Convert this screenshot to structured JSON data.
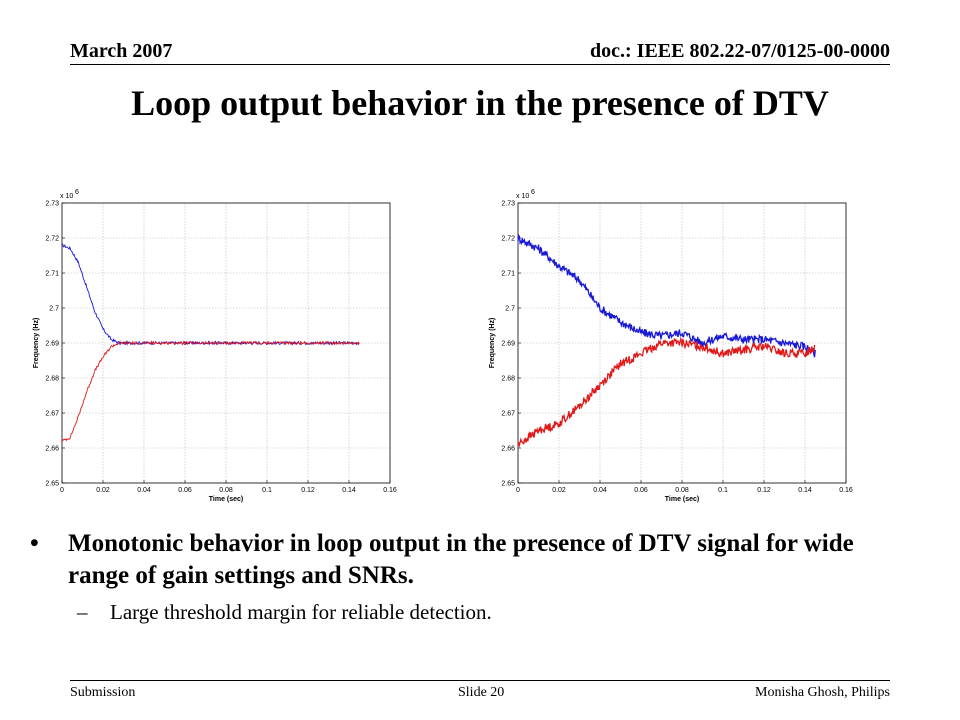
{
  "header": {
    "date": "March 2007",
    "doc": "doc.: IEEE 802.22-07/0125-00-0000"
  },
  "title": "Loop output behavior in the presence of DTV",
  "chart_data": [
    {
      "type": "line",
      "xlabel": "Time (sec)",
      "ylabel": "Frequency (Hz)",
      "exponent_label": "x 10",
      "exponent_power": "6",
      "xlim": [
        0,
        0.16
      ],
      "ylim": [
        2.65,
        2.73
      ],
      "xticks": [
        "0",
        "0.02",
        "0.04",
        "0.06",
        "0.08",
        "0.1",
        "0.12",
        "0.14",
        "0.16"
      ],
      "yticks": [
        "2.65",
        "2.66",
        "2.67",
        "2.68",
        "2.69",
        "2.7",
        "2.71",
        "2.72",
        "2.73"
      ],
      "grid": true,
      "series": [
        {
          "color": "#1a1ad6",
          "x": [
            0,
            0.004,
            0.008,
            0.012,
            0.016,
            0.02,
            0.024,
            0.028,
            0.032,
            0.04,
            0.06,
            0.08,
            0.1,
            0.12,
            0.145
          ],
          "y": [
            2.718,
            2.717,
            2.713,
            2.706,
            2.699,
            2.694,
            2.691,
            2.69,
            2.69,
            2.69,
            2.69,
            2.69,
            2.69,
            2.69,
            2.69
          ]
        },
        {
          "color": "#e01818",
          "x": [
            0,
            0.004,
            0.008,
            0.012,
            0.016,
            0.02,
            0.024,
            0.028,
            0.032,
            0.04,
            0.06,
            0.08,
            0.1,
            0.12,
            0.145
          ],
          "y": [
            2.662,
            2.663,
            2.669,
            2.676,
            2.682,
            2.686,
            2.689,
            2.69,
            2.69,
            2.69,
            2.69,
            2.69,
            2.69,
            2.69,
            2.69
          ]
        }
      ]
    },
    {
      "type": "line",
      "xlabel": "Time (sec)",
      "ylabel": "Frequency (Hz)",
      "exponent_label": "x 10",
      "exponent_power": "6",
      "xlim": [
        0,
        0.16
      ],
      "ylim": [
        2.65,
        2.73
      ],
      "xticks": [
        "0",
        "0.02",
        "0.04",
        "0.06",
        "0.08",
        "0.1",
        "0.12",
        "0.14",
        "0.16"
      ],
      "yticks": [
        "2.65",
        "2.66",
        "2.67",
        "2.68",
        "2.69",
        "2.7",
        "2.71",
        "2.72",
        "2.73"
      ],
      "grid": true,
      "series": [
        {
          "color": "#1a1ad6",
          "x": [
            0,
            0.01,
            0.02,
            0.03,
            0.04,
            0.05,
            0.06,
            0.07,
            0.08,
            0.09,
            0.1,
            0.11,
            0.12,
            0.13,
            0.14,
            0.145
          ],
          "y": [
            2.72,
            2.717,
            2.712,
            2.708,
            2.7,
            2.696,
            2.693,
            2.692,
            2.693,
            2.69,
            2.692,
            2.691,
            2.691,
            2.69,
            2.689,
            2.687
          ]
        },
        {
          "color": "#e01818",
          "x": [
            0,
            0.01,
            0.02,
            0.03,
            0.04,
            0.05,
            0.06,
            0.07,
            0.08,
            0.09,
            0.1,
            0.11,
            0.12,
            0.13,
            0.14,
            0.145
          ],
          "y": [
            2.661,
            2.665,
            2.667,
            2.672,
            2.678,
            2.684,
            2.687,
            2.69,
            2.69,
            2.689,
            2.687,
            2.688,
            2.689,
            2.687,
            2.687,
            2.689
          ]
        }
      ]
    }
  ],
  "bullets": {
    "main": "Monotonic behavior in loop output in the presence of DTV signal for wide range of gain settings and SNRs.",
    "sub": "Large threshold margin for reliable detection."
  },
  "footer": {
    "left": "Submission",
    "center": "Slide 20",
    "right": "Monisha Ghosh, Philips"
  }
}
